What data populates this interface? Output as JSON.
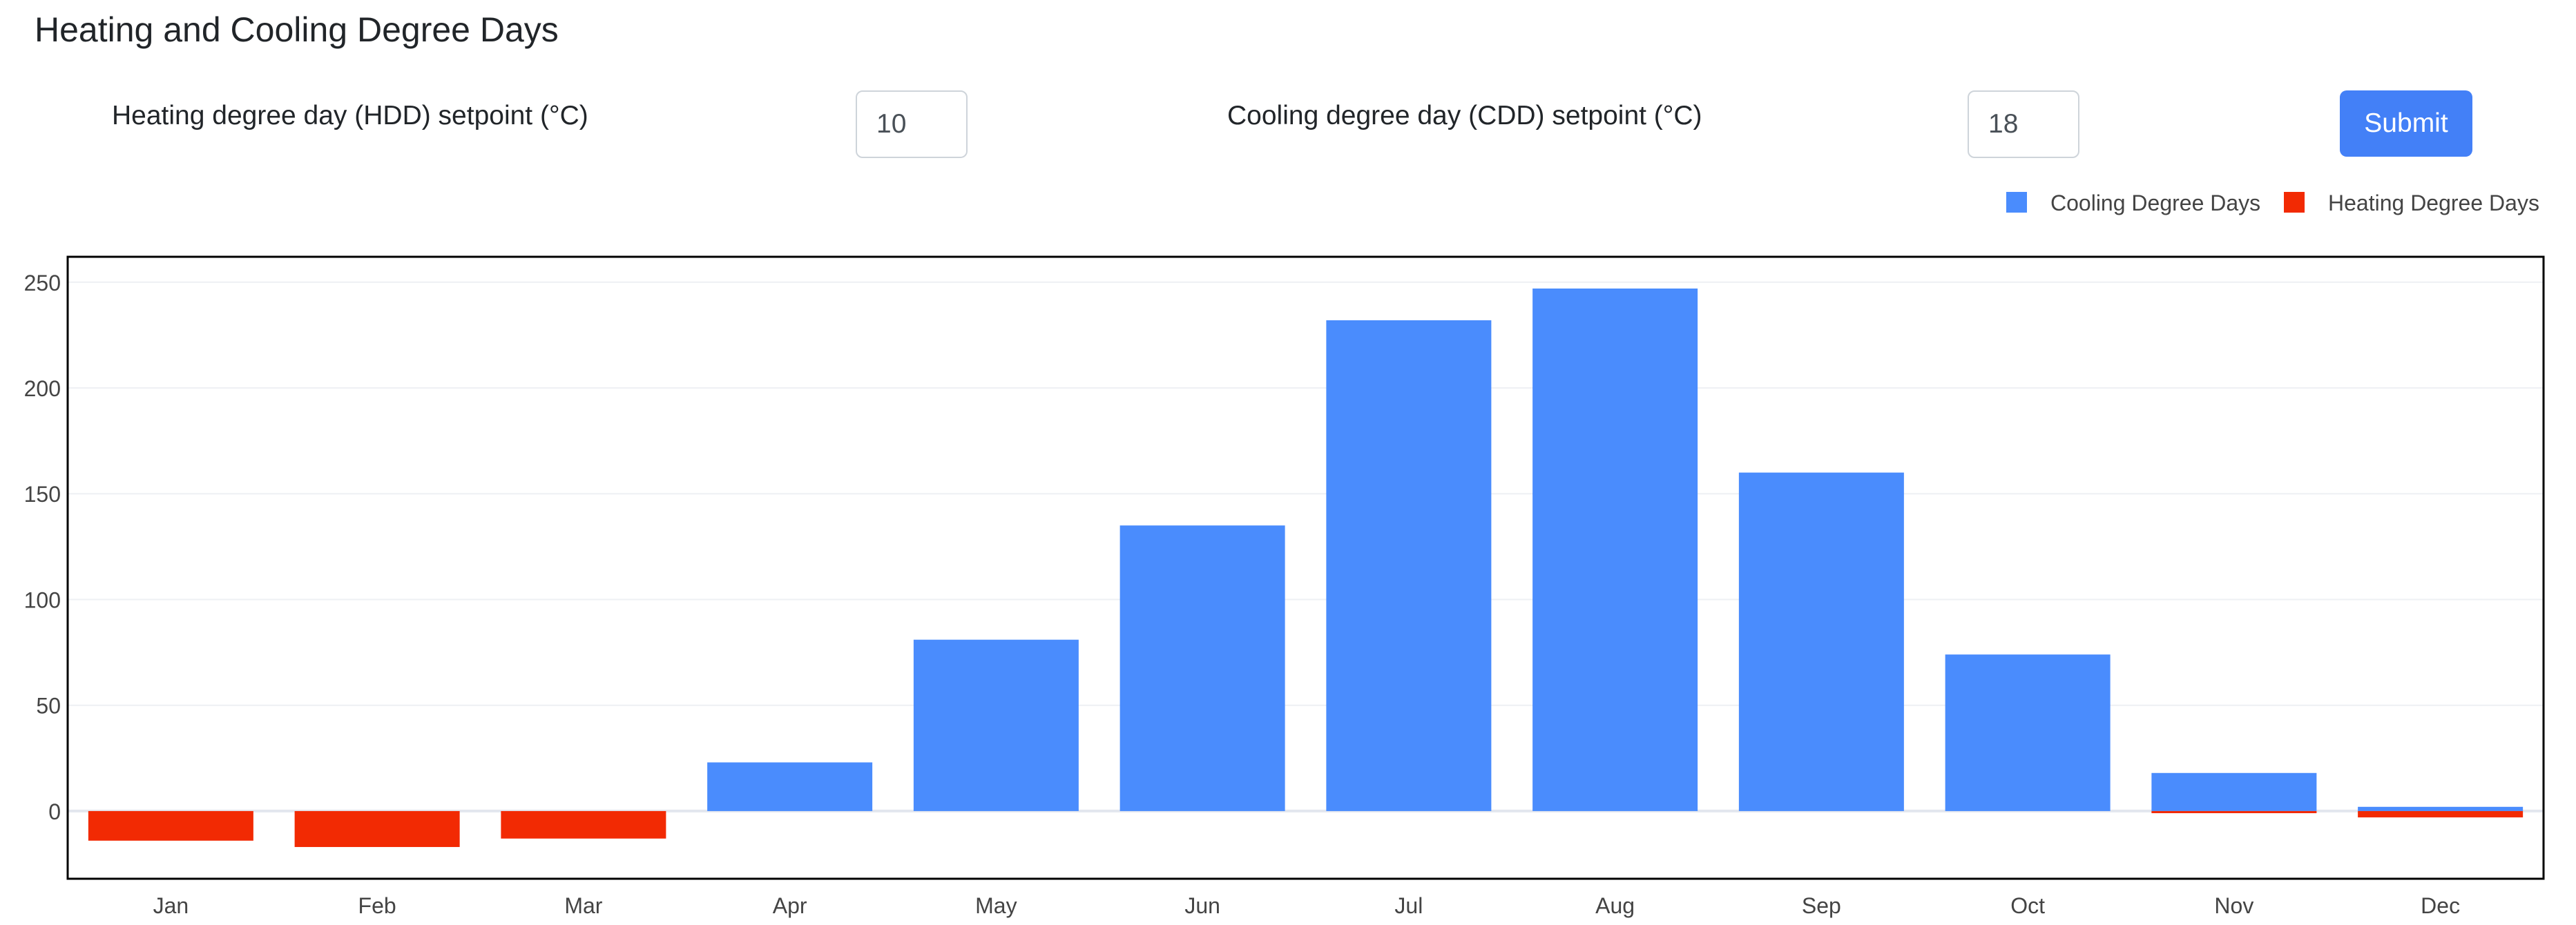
{
  "page": {
    "title": "Heating and Cooling Degree Days"
  },
  "form": {
    "hdd_label": "Heating degree day (HDD) setpoint (°C)",
    "hdd_value": "10",
    "cdd_label": "Cooling degree day (CDD) setpoint (°C)",
    "cdd_value": "18",
    "submit_label": "Submit"
  },
  "colors": {
    "cooling": "#4a8cfd",
    "heating": "#f22a03",
    "button": "#4380f7"
  },
  "chart_data": {
    "type": "bar",
    "categories": [
      "Jan",
      "Feb",
      "Mar",
      "Apr",
      "May",
      "Jun",
      "Jul",
      "Aug",
      "Sep",
      "Oct",
      "Nov",
      "Dec"
    ],
    "series": [
      {
        "name": "Cooling Degree Days",
        "values": [
          0,
          0,
          0,
          23,
          81,
          135,
          232,
          247,
          160,
          74,
          18,
          2
        ],
        "color": "#4a8cfd"
      },
      {
        "name": "Heating Degree Days",
        "values": [
          -14,
          -17,
          -13,
          0,
          0,
          0,
          0,
          0,
          0,
          0,
          -1,
          -3
        ],
        "color": "#f22a03"
      }
    ],
    "title": "",
    "xlabel": "",
    "ylabel": "",
    "ylim": [
      -32,
      262
    ],
    "yticks": [
      0,
      50,
      100,
      150,
      200,
      250
    ],
    "grid": true,
    "legend_position": "top-right",
    "barmode": "relative"
  }
}
